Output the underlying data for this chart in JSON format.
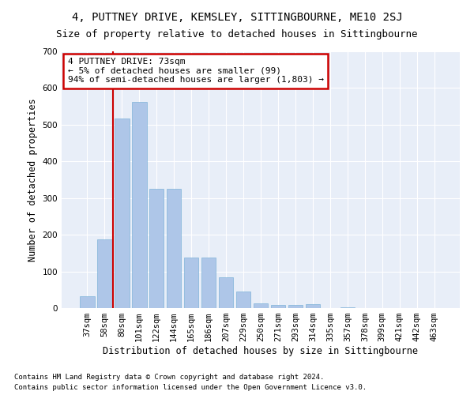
{
  "title": "4, PUTTNEY DRIVE, KEMSLEY, SITTINGBOURNE, ME10 2SJ",
  "subtitle": "Size of property relative to detached houses in Sittingbourne",
  "xlabel": "Distribution of detached houses by size in Sittingbourne",
  "ylabel": "Number of detached properties",
  "footnote1": "Contains HM Land Registry data © Crown copyright and database right 2024.",
  "footnote2": "Contains public sector information licensed under the Open Government Licence v3.0.",
  "annotation_title": "4 PUTTNEY DRIVE: 73sqm",
  "annotation_line1": "← 5% of detached houses are smaller (99)",
  "annotation_line2": "94% of semi-detached houses are larger (1,803) →",
  "bar_color": "#aec6e8",
  "bar_edge_color": "#7fb3d9",
  "vline_color": "#cc0000",
  "annotation_box_edgecolor": "#cc0000",
  "bg_color": "#e8eef8",
  "categories": [
    "37sqm",
    "58sqm",
    "80sqm",
    "101sqm",
    "122sqm",
    "144sqm",
    "165sqm",
    "186sqm",
    "207sqm",
    "229sqm",
    "250sqm",
    "271sqm",
    "293sqm",
    "314sqm",
    "335sqm",
    "357sqm",
    "378sqm",
    "399sqm",
    "421sqm",
    "442sqm",
    "463sqm"
  ],
  "values": [
    32,
    188,
    516,
    562,
    325,
    325,
    138,
    138,
    85,
    45,
    14,
    8,
    8,
    10,
    0,
    3,
    0,
    0,
    0,
    0,
    0
  ],
  "ylim": [
    0,
    700
  ],
  "yticks": [
    0,
    100,
    200,
    300,
    400,
    500,
    600,
    700
  ],
  "vline_x_index": 1.5,
  "title_fontsize": 10,
  "subtitle_fontsize": 9,
  "axis_label_fontsize": 8.5,
  "tick_fontsize": 7.5,
  "annotation_fontsize": 8,
  "footnote_fontsize": 6.5
}
